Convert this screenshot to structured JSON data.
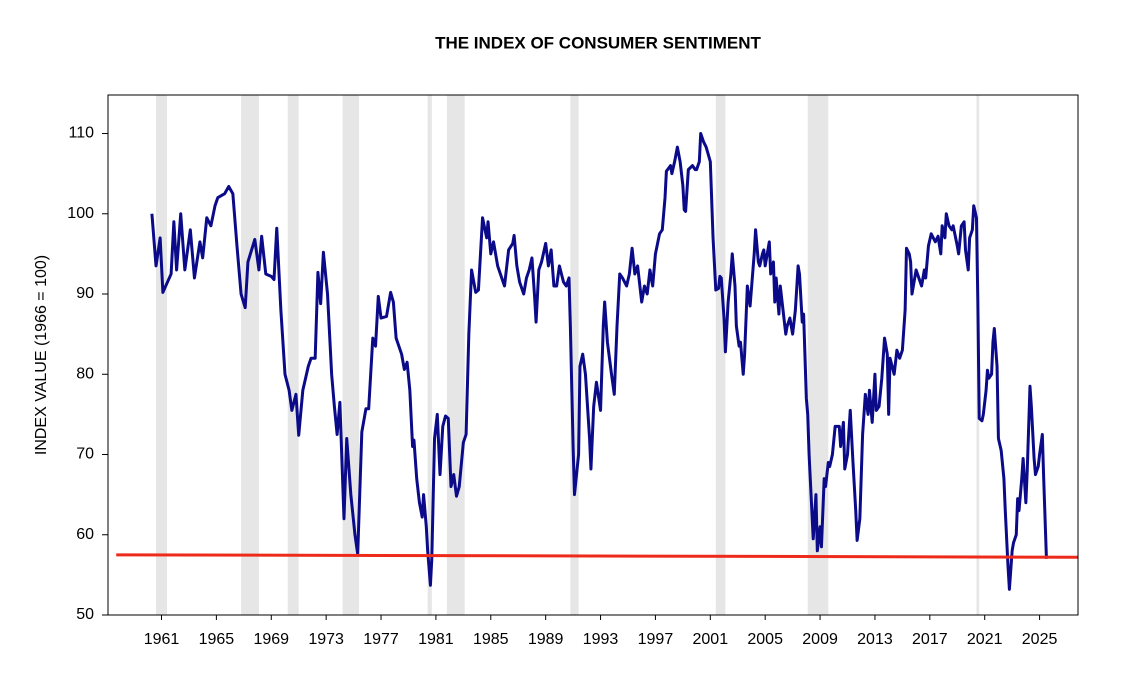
{
  "chart_data": {
    "type": "line",
    "title": "THE INDEX OF CONSUMER SENTIMENT",
    "y_label": "INDEX VALUE (1966 = 100)",
    "xlim": [
      1957.1,
      2027.8
    ],
    "xticks": [
      1961,
      1965,
      1969,
      1973,
      1977,
      1981,
      1985,
      1989,
      1993,
      1997,
      2001,
      2005,
      2009,
      2013,
      2017,
      2021,
      2025
    ],
    "ylim": [
      50,
      114.8
    ],
    "yticks": [
      50,
      60,
      70,
      80,
      90,
      100,
      110
    ],
    "recession_color": "#e6e6e6",
    "recessions": [
      [
        1960.6,
        1961.4
      ],
      [
        1966.8,
        1968.1
      ],
      [
        1970.2,
        1971.0
      ],
      [
        1974.2,
        1975.4
      ],
      [
        1980.4,
        1980.7
      ],
      [
        1981.8,
        1983.1
      ],
      [
        1990.8,
        1991.4
      ],
      [
        2001.4,
        2002.1
      ],
      [
        2008.1,
        2009.6
      ],
      [
        2020.4,
        2020.6
      ]
    ],
    "reference_line": {
      "color": "#ee2a1a",
      "x": [
        1957.7,
        2027.8
      ],
      "values": [
        57.5,
        57.2
      ]
    },
    "x": [
      1960.3,
      1960.6,
      1960.9,
      1961.1,
      1961.7,
      1961.9,
      1962.1,
      1962.4,
      1962.7,
      1963.1,
      1963.4,
      1963.8,
      1964.0,
      1964.3,
      1964.6,
      1964.9,
      1965.1,
      1965.6,
      1965.9,
      1966.2,
      1966.5,
      1966.8,
      1967.1,
      1967.3,
      1967.8,
      1968.1,
      1968.3,
      1968.6,
      1969.0,
      1969.2,
      1969.4,
      1969.7,
      1970.0,
      1970.3,
      1970.5,
      1970.8,
      1971.0,
      1971.3,
      1971.7,
      1971.9,
      1972.2,
      1972.4,
      1972.6,
      1972.8,
      1973.1,
      1973.4,
      1973.6,
      1973.8,
      1974.0,
      1974.3,
      1974.5,
      1974.8,
      1975.1,
      1975.3,
      1975.6,
      1975.9,
      1976.1,
      1976.4,
      1976.6,
      1976.8,
      1977.0,
      1977.4,
      1977.7,
      1977.9,
      1978.1,
      1978.5,
      1978.7,
      1978.9,
      1979.1,
      1979.3,
      1979.4,
      1979.6,
      1979.8,
      1980.0,
      1980.1,
      1980.3,
      1980.4,
      1980.6,
      1980.7,
      1980.9,
      1981.1,
      1981.3,
      1981.5,
      1981.7,
      1981.9,
      1982.1,
      1982.3,
      1982.5,
      1982.7,
      1983.0,
      1983.2,
      1983.4,
      1983.6,
      1983.9,
      1984.1,
      1984.4,
      1984.7,
      1984.8,
      1985.0,
      1985.2,
      1985.5,
      1985.8,
      1986.0,
      1986.3,
      1986.6,
      1986.7,
      1986.9,
      1987.1,
      1987.4,
      1987.6,
      1987.8,
      1988.0,
      1988.2,
      1988.3,
      1988.5,
      1988.7,
      1989.0,
      1989.2,
      1989.4,
      1989.6,
      1989.8,
      1990.0,
      1990.3,
      1990.5,
      1990.7,
      1990.8,
      1991.0,
      1991.1,
      1991.4,
      1991.5,
      1991.7,
      1991.9,
      1992.2,
      1992.3,
      1992.5,
      1992.7,
      1993.0,
      1993.2,
      1993.3,
      1993.5,
      1993.8,
      1994.0,
      1994.2,
      1994.4,
      1994.6,
      1994.9,
      1995.1,
      1995.3,
      1995.5,
      1995.7,
      1996.0,
      1996.2,
      1996.4,
      1996.6,
      1996.8,
      1997.0,
      1997.3,
      1997.5,
      1997.7,
      1997.8,
      1998.1,
      1998.2,
      1998.4,
      1998.6,
      1998.8,
      1999.0,
      1999.1,
      1999.2,
      1999.4,
      1999.7,
      1999.9,
      2000.0,
      2000.2,
      2000.3,
      2000.5,
      2000.7,
      2001.0,
      2001.2,
      2001.4,
      2001.6,
      2001.7,
      2001.8,
      2002.0,
      2002.1,
      2002.3,
      2002.5,
      2002.6,
      2002.8,
      2002.9,
      2003.1,
      2003.2,
      2003.4,
      2003.5,
      2003.7,
      2003.9,
      2004.2,
      2004.3,
      2004.5,
      2004.6,
      2004.8,
      2004.9,
      2005.0,
      2005.3,
      2005.4,
      2005.6,
      2005.7,
      2005.8,
      2006.0,
      2006.1,
      2006.3,
      2006.5,
      2006.6,
      2006.8,
      2007.0,
      2007.2,
      2007.4,
      2007.5,
      2007.7,
      2007.8,
      2008.0,
      2008.1,
      2008.2,
      2008.4,
      2008.5,
      2008.7,
      2008.8,
      2009.0,
      2009.1,
      2009.3,
      2009.4,
      2009.6,
      2009.7,
      2009.9,
      2010.1,
      2010.4,
      2010.5,
      2010.7,
      2010.8,
      2011.0,
      2011.2,
      2011.4,
      2011.6,
      2011.7,
      2011.9,
      2012.1,
      2012.3,
      2012.5,
      2012.6,
      2012.8,
      2013.0,
      2013.1,
      2013.3,
      2013.5,
      2013.7,
      2013.9,
      2014.0,
      2014.1,
      2014.4,
      2014.6,
      2014.8,
      2015.0,
      2015.2,
      2015.3,
      2015.5,
      2015.6,
      2015.7,
      2016.0,
      2016.2,
      2016.4,
      2016.6,
      2016.7,
      2016.9,
      2017.1,
      2017.4,
      2017.6,
      2017.8,
      2017.9,
      2018.1,
      2018.2,
      2018.4,
      2018.6,
      2018.7,
      2019.0,
      2019.1,
      2019.3,
      2019.5,
      2019.6,
      2019.8,
      2019.9,
      2020.1,
      2020.2,
      2020.4,
      2020.5,
      2020.6,
      2020.8,
      2020.9,
      2021.1,
      2021.2,
      2021.3,
      2021.5,
      2021.6,
      2021.7,
      2021.9,
      2022.0,
      2022.2,
      2022.4,
      2022.5,
      2022.7,
      2022.8,
      2023.0,
      2023.1,
      2023.3,
      2023.4,
      2023.5,
      2023.7,
      2023.8,
      2024.0,
      2024.1,
      2024.3,
      2024.4,
      2024.6,
      2024.7,
      2024.9,
      2025.0,
      2025.2,
      2025.3,
      2025.5
    ],
    "series": [
      {
        "color": "#0b0b8a",
        "values": [
          100,
          93.5,
          97,
          90.2,
          92.5,
          99,
          93,
          100,
          93,
          98,
          92,
          96.5,
          94.5,
          99.5,
          98.5,
          101,
          102,
          102.5,
          103.4,
          102.5,
          96,
          90,
          88.3,
          94,
          96.8,
          93,
          97.2,
          92.5,
          92.2,
          91.8,
          98.2,
          88,
          80,
          78,
          75.5,
          77.5,
          72.4,
          78,
          81,
          82,
          82,
          92.7,
          88.8,
          95.2,
          90,
          80,
          76,
          72.5,
          76.5,
          62,
          72,
          65,
          60,
          57.6,
          72.8,
          75.7,
          75.7,
          84.5,
          83.5,
          89.7,
          87,
          87.2,
          90.2,
          89,
          84.5,
          82.5,
          80.6,
          81.5,
          78,
          71,
          71.8,
          67,
          64,
          62.2,
          65,
          61,
          58,
          53.7,
          57,
          72,
          75,
          67.5,
          73.5,
          74.8,
          74.5,
          66,
          67.5,
          64.8,
          66,
          71.5,
          72.5,
          85,
          93,
          90.2,
          90.5,
          99.5,
          97,
          99,
          95,
          96.5,
          93.5,
          92,
          91,
          95.5,
          96.3,
          97.3,
          93.5,
          91.5,
          90,
          92,
          93,
          94.5,
          89.5,
          86.5,
          93,
          94,
          96.3,
          93.5,
          95.5,
          91,
          91,
          93.5,
          91.5,
          91,
          92,
          86,
          71,
          65,
          70,
          81,
          82.5,
          80,
          72,
          68.2,
          76,
          79,
          75.5,
          86,
          89,
          84,
          80,
          77.5,
          86,
          92.5,
          92,
          91,
          92.5,
          95.7,
          92.5,
          93.5,
          89,
          91,
          90,
          93,
          91,
          95,
          97.5,
          98,
          102,
          105.3,
          106,
          105,
          106.5,
          108.3,
          106.5,
          103.5,
          100.5,
          100.3,
          105.5,
          106,
          105.5,
          105.5,
          106.5,
          110,
          109,
          108.3,
          106.5,
          97,
          90.5,
          90.7,
          92.2,
          92,
          87,
          82.8,
          89,
          92.5,
          95,
          91,
          86,
          83.5,
          84,
          80,
          82.5,
          91,
          88.5,
          95,
          98,
          94,
          93.5,
          95,
          95.5,
          93.5,
          96.5,
          92.5,
          94,
          89,
          92,
          87.5,
          91,
          88,
          85,
          86,
          87,
          85,
          88,
          93.5,
          92.5,
          86.5,
          87.5,
          77,
          75,
          70,
          63,
          59.5,
          65,
          58,
          61,
          58.5,
          67,
          66,
          69,
          68.5,
          70,
          73.5,
          73.5,
          71,
          74,
          68.2,
          70,
          75.5,
          69,
          63,
          59.3,
          62,
          72.5,
          77.5,
          75,
          78,
          74,
          80,
          75.5,
          76,
          79.5,
          84.5,
          82.5,
          75,
          82,
          80,
          83,
          82,
          83,
          88,
          95.7,
          95,
          94,
          90,
          93,
          92,
          91,
          93,
          92,
          96,
          97.5,
          96.5,
          97.2,
          95,
          98.5,
          97,
          100,
          98.5,
          98,
          98.5,
          96,
          95,
          98.5,
          99,
          95.5,
          93,
          97,
          98,
          101,
          99.5,
          89,
          74.5,
          74.2,
          75,
          78,
          80.5,
          79.5,
          80,
          84,
          85.7,
          81,
          72,
          70.5,
          67,
          63,
          56,
          53.2,
          58,
          59,
          60,
          64.5,
          63,
          67,
          69.5,
          64,
          68,
          78.5,
          76,
          69.5,
          67.5,
          68.5,
          70,
          72.5,
          67,
          57
        ]
      }
    ]
  }
}
